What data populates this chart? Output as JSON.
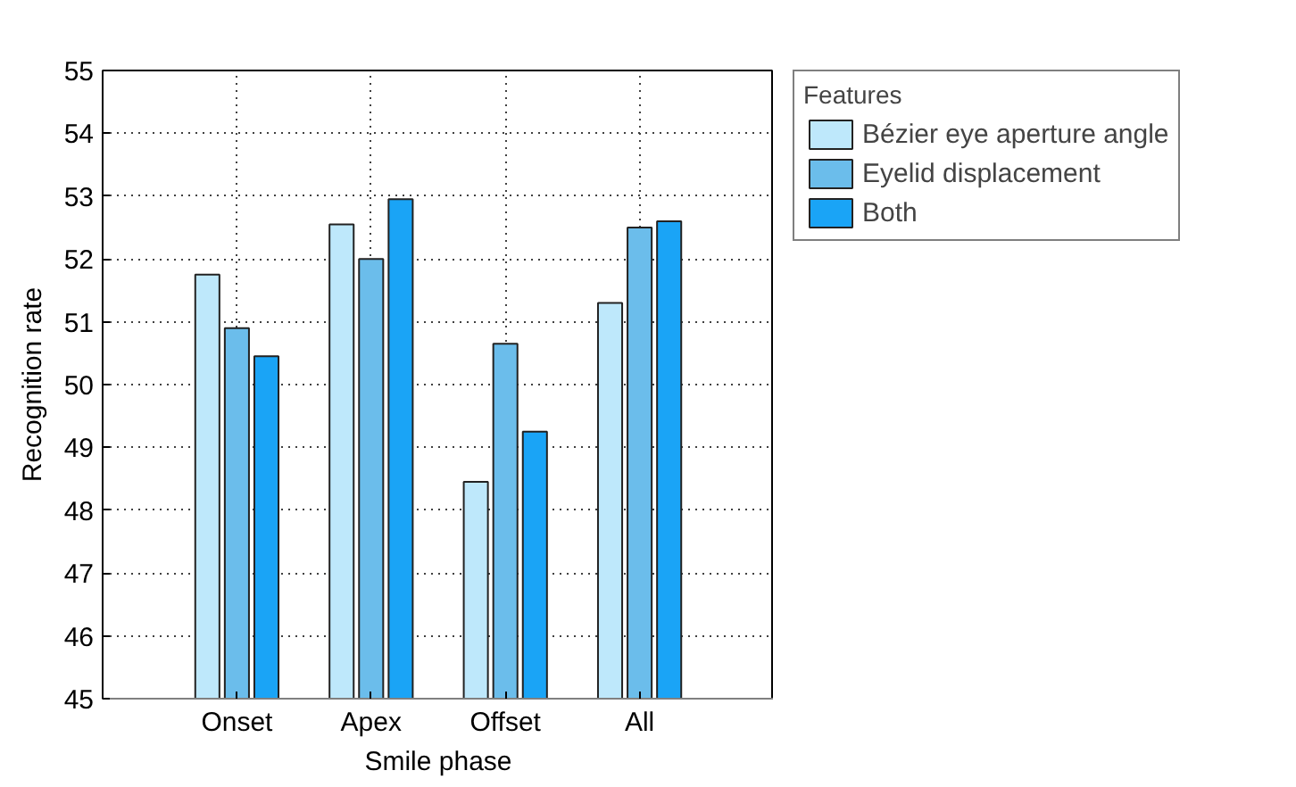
{
  "chart_data": {
    "type": "bar",
    "xlabel": "Smile phase",
    "ylabel": "Recognition rate",
    "legend_title": "Features",
    "categories": [
      "Onset",
      "Apex",
      "Offset",
      "All"
    ],
    "series": [
      {
        "name": "Bézier eye aperture angle",
        "color": "#bee8fb",
        "values": [
          51.75,
          52.55,
          48.45,
          51.3
        ]
      },
      {
        "name": "Eyelid displacement",
        "color": "#6bbdeb",
        "values": [
          50.9,
          52.0,
          50.65,
          52.5
        ]
      },
      {
        "name": "Both",
        "color": "#1aa4f6",
        "values": [
          50.45,
          52.95,
          49.25,
          52.6
        ]
      }
    ],
    "ylim": [
      45,
      55
    ],
    "yticks": [
      45,
      46,
      47,
      48,
      49,
      50,
      51,
      52,
      53,
      54,
      55
    ],
    "grid": true,
    "legend": "right"
  }
}
